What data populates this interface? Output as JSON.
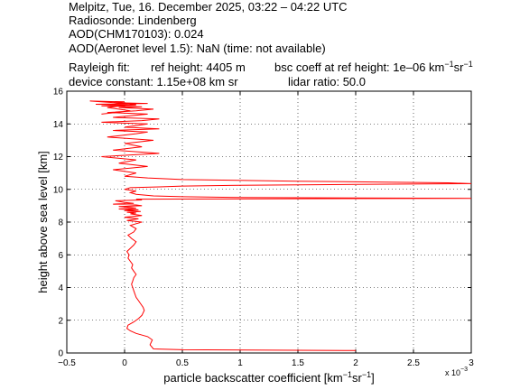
{
  "header": {
    "line1": "Melpitz, Tue, 16. December 2025, 03:22 – 04:22 UTC",
    "line2": "Radiosonde: Lindenberg",
    "line3": "AOD(CHM170103): 0.024",
    "line4": "AOD(Aeronet level 1.5): NaN   (time: not available)",
    "rayleigh_label": "Rayleigh fit:",
    "ref_height": "ref height: 4405 m",
    "bsc_coeff_prefix": "bsc coeff at ref height: 1e–06 km",
    "bsc_coeff_sr": "sr",
    "device_constant": "device constant: 1.15e+08 km sr",
    "lidar_ratio": "lidar ratio: 50.0"
  },
  "chart_data": {
    "type": "line",
    "xlabel_prefix": "particle backscatter coefficient [km",
    "xlabel_sr": "sr",
    "xlabel_suffix": "]",
    "ylabel": "height above sea level [km]",
    "xlim": [
      -0.5,
      3.0
    ],
    "ylim": [
      0,
      16
    ],
    "x_ticks": [
      -0.5,
      0,
      0.5,
      1,
      1.5,
      2,
      2.5,
      3
    ],
    "x_tick_labels": [
      "−0.5",
      "0",
      "0.5",
      "1",
      "1.5",
      "2",
      "2.5",
      "3"
    ],
    "y_ticks": [
      0,
      2,
      4,
      6,
      8,
      10,
      12,
      14,
      16
    ],
    "y_tick_labels": [
      "0",
      "2",
      "4",
      "6",
      "8",
      "10",
      "12",
      "14",
      "16"
    ],
    "x_multiplier_base": "x 10",
    "x_multiplier_exp": "−3",
    "grid": true,
    "line_color": "#ff0000",
    "series": [
      {
        "x": [
          2.0,
          0.5,
          0.25,
          0.22,
          0.24,
          0.2,
          0.1,
          0.05,
          0.02,
          0.03,
          0.08,
          0.12,
          0.15,
          0.17,
          0.16,
          0.14,
          0.12,
          0.1,
          0.09,
          0.08,
          0.07,
          0.06,
          0.07,
          0.08,
          0.1,
          0.08,
          0.06,
          0.07,
          0.05,
          0.03,
          0.04,
          0.02,
          0.05,
          0.08,
          0.1,
          0.06,
          0.03,
          0.08,
          0.1,
          0.05,
          0.1,
          0.15,
          0.02,
          0.12,
          0.0,
          0.15,
          0.05,
          0.1,
          0.02,
          0.14,
          0.0,
          0.12,
          -0.05,
          0.1,
          0.05,
          -0.05,
          0.15,
          0.1,
          -0.1,
          0.08,
          0.0,
          -0.08,
          0.15,
          0.1,
          3.0,
          1.0,
          0.5,
          0.25,
          0.1,
          0.05,
          0.1,
          0.0,
          0.05,
          0.3,
          0.5,
          1.0,
          2.0,
          3.0,
          2.8,
          1.5,
          0.5,
          0.2,
          0.0,
          0.1,
          -0.1,
          0.2,
          -0.05,
          0.1,
          -0.2,
          0.3,
          -0.1,
          0.15,
          0.0,
          0.25,
          -0.15,
          0.1,
          0.2,
          -0.1,
          0.3,
          0.0,
          0.1,
          0.2,
          -0.2,
          0.15,
          0.3,
          -0.1,
          0.05,
          0.2,
          -0.15,
          0.1,
          0.25,
          -0.05,
          0.15,
          -0.2,
          0.1,
          -0.25,
          0.2,
          -0.1,
          0.0,
          -0.3,
          0.1,
          -0.15,
          0.05,
          -0.2
        ],
        "y": [
          0.15,
          0.2,
          0.25,
          0.5,
          0.8,
          1.0,
          1.2,
          1.35,
          1.5,
          1.7,
          1.9,
          2.1,
          2.3,
          2.6,
          2.8,
          3.0,
          3.2,
          3.4,
          3.6,
          3.8,
          4.0,
          4.2,
          4.4,
          4.6,
          4.8,
          5.0,
          5.2,
          5.4,
          5.6,
          5.8,
          6.0,
          6.2,
          6.4,
          6.6,
          6.8,
          7.0,
          7.2,
          7.4,
          7.6,
          7.8,
          7.9,
          8.0,
          8.1,
          8.2,
          8.3,
          8.4,
          8.5,
          8.55,
          8.6,
          8.65,
          8.7,
          8.75,
          8.8,
          8.85,
          8.9,
          8.95,
          9.0,
          9.05,
          9.1,
          9.15,
          9.2,
          9.3,
          9.35,
          9.4,
          9.45,
          9.5,
          9.55,
          9.6,
          9.7,
          9.8,
          9.9,
          10.0,
          10.1,
          10.15,
          10.2,
          10.25,
          10.3,
          10.35,
          10.4,
          10.5,
          10.6,
          10.7,
          10.8,
          11.0,
          11.2,
          11.4,
          11.6,
          11.8,
          12.0,
          12.2,
          12.4,
          12.6,
          12.8,
          13.0,
          13.2,
          13.4,
          13.5,
          13.6,
          13.7,
          13.8,
          13.9,
          14.0,
          14.1,
          14.2,
          14.3,
          14.4,
          14.5,
          14.6,
          14.7,
          14.8,
          14.9,
          15.0,
          15.05,
          15.1,
          15.15,
          15.2,
          15.25,
          15.3,
          15.35,
          15.4,
          15.2,
          15.0,
          14.8,
          14.6
        ]
      }
    ]
  }
}
